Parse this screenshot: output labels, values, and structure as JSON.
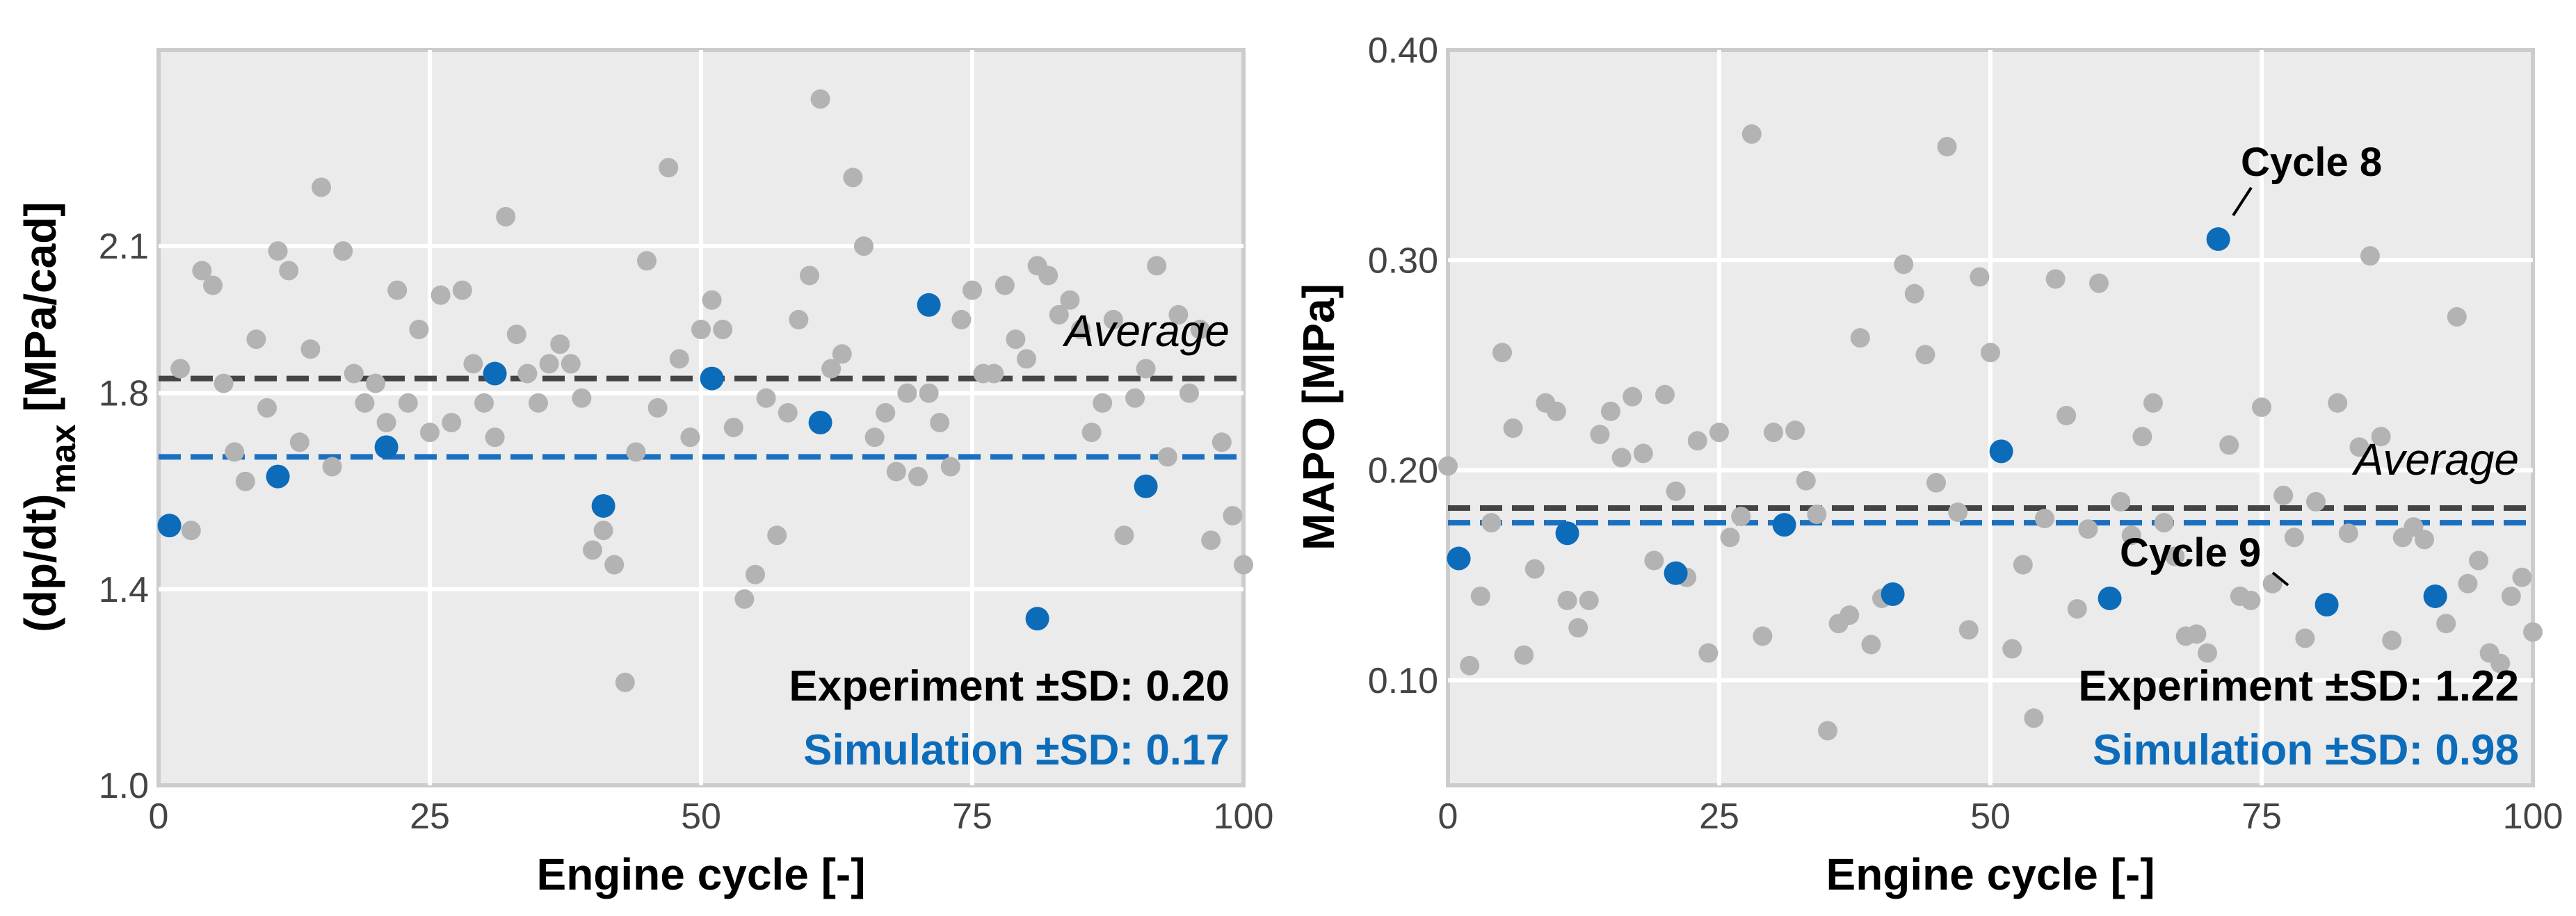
{
  "chart_data": [
    {
      "type": "scatter",
      "xlabel": "Engine cycle [-]",
      "ylabel": "(dp/dt)",
      "ylabel_sub": "max",
      "ylabel_unit": " [MPa/cad]",
      "xlim": [
        0,
        100
      ],
      "ylim": [
        1.0,
        2.5
      ],
      "xticks": [
        0,
        25,
        50,
        75,
        100
      ],
      "yticks": [
        1.0,
        1.4,
        1.8,
        2.1
      ],
      "ytick_labels": [
        "1.0",
        "1.4",
        "1.8",
        "2.1"
      ],
      "grid": true,
      "average_label": "Average",
      "experiment_label": "Experiment ±SD: 0.20",
      "simulation_label": "Simulation ±SD: 0.17",
      "experiment_average": 1.83,
      "simulation_average": 1.67,
      "colors": {
        "experiment": "#b3b3b3",
        "simulation": "#0c6cba",
        "experiment_line": "#444444",
        "simulation_line": "#1a6fc0"
      },
      "series": [
        {
          "name": "Experiment",
          "x": [
            2,
            3,
            4,
            5,
            6,
            7,
            8,
            9,
            10,
            11,
            12,
            13,
            14,
            15,
            16,
            17,
            18,
            19,
            20,
            21,
            22,
            23,
            24,
            25,
            26,
            27,
            28,
            29,
            30,
            31,
            32,
            33,
            34,
            35,
            36,
            37,
            38,
            39,
            40,
            41,
            42,
            43,
            44,
            45,
            46,
            47,
            48,
            49,
            50,
            51,
            52,
            53,
            54,
            55,
            56,
            57,
            58,
            59,
            60,
            61,
            62,
            63,
            64,
            65,
            66,
            67,
            68,
            69,
            70,
            71,
            72,
            73,
            74,
            75,
            76,
            77,
            78,
            79,
            80,
            81,
            82,
            83,
            84,
            85,
            86,
            87,
            88,
            89,
            90,
            91,
            92,
            93,
            94,
            95,
            96,
            97,
            98,
            99,
            100
          ],
          "y": [
            1.85,
            1.52,
            2.05,
            2.02,
            1.82,
            1.68,
            1.62,
            1.91,
            1.77,
            2.09,
            2.05,
            1.7,
            1.89,
            2.22,
            1.65,
            2.09,
            1.84,
            1.78,
            1.82,
            1.74,
            2.01,
            1.78,
            1.93,
            1.72,
            2.0,
            1.74,
            2.01,
            1.86,
            1.78,
            1.71,
            2.16,
            1.92,
            1.84,
            1.78,
            1.86,
            1.9,
            1.86,
            1.79,
            1.48,
            1.52,
            1.45,
            1.21,
            1.68,
            2.07,
            1.77,
            2.26,
            1.87,
            1.71,
            1.93,
            1.99,
            1.93,
            1.73,
            1.38,
            1.43,
            1.79,
            1.51,
            1.76,
            1.95,
            2.04,
            2.4,
            1.85,
            1.88,
            2.24,
            2.1,
            1.71,
            1.76,
            1.64,
            1.8,
            1.63,
            1.8,
            1.74,
            1.65,
            1.95,
            2.01,
            1.84,
            1.84,
            2.02,
            1.91,
            1.87,
            2.06,
            2.04,
            1.96,
            1.99,
            1.93,
            1.72,
            1.78,
            1.95,
            1.51,
            1.79,
            1.85,
            2.06,
            1.67,
            1.96,
            1.8,
            1.93,
            1.5,
            1.7,
            1.55,
            1.45
          ]
        },
        {
          "name": "Simulation",
          "x": [
            1,
            11,
            21,
            31,
            41,
            51,
            61,
            71,
            81,
            91
          ],
          "y": [
            1.53,
            1.63,
            1.69,
            1.84,
            1.57,
            1.83,
            1.74,
            1.98,
            1.34,
            1.61
          ]
        }
      ]
    },
    {
      "type": "scatter",
      "xlabel": "Engine cycle [-]",
      "ylabel": "MAPO [MPa]",
      "xlim": [
        0,
        100
      ],
      "ylim": [
        0.05,
        0.4
      ],
      "xticks": [
        0,
        25,
        50,
        75,
        100
      ],
      "yticks": [
        0.1,
        0.2,
        0.3,
        0.4
      ],
      "ytick_labels": [
        "0.10",
        "0.20",
        "0.30",
        "0.40"
      ],
      "grid": true,
      "average_label": "Average",
      "experiment_label": "Experiment ±SD: 1.22",
      "simulation_label": "Simulation ±SD: 0.98",
      "experiment_average": 0.182,
      "simulation_average": 0.175,
      "annotations": [
        {
          "text": "Cycle 8",
          "x": 71,
          "y": 0.31
        },
        {
          "text": "Cycle 9",
          "x": 81,
          "y": 0.136
        }
      ],
      "colors": {
        "experiment": "#b3b3b3",
        "simulation": "#0c6cba",
        "experiment_line": "#444444",
        "simulation_line": "#1a6fc0"
      },
      "series": [
        {
          "name": "Experiment",
          "x": [
            0,
            2,
            3,
            4,
            5,
            6,
            7,
            8,
            9,
            10,
            11,
            12,
            13,
            14,
            15,
            16,
            17,
            18,
            19,
            20,
            21,
            22,
            23,
            24,
            25,
            26,
            27,
            28,
            29,
            30,
            32,
            33,
            34,
            35,
            36,
            37,
            38,
            39,
            40,
            42,
            43,
            44,
            45,
            46,
            47,
            48,
            49,
            50,
            52,
            53,
            54,
            55,
            56,
            57,
            58,
            59,
            60,
            62,
            63,
            64,
            65,
            66,
            67,
            68,
            69,
            70,
            72,
            73,
            74,
            75,
            76,
            77,
            78,
            79,
            80,
            82,
            83,
            84,
            85,
            86,
            87,
            88,
            89,
            90,
            92,
            93,
            94,
            95,
            96,
            97,
            98,
            99,
            100
          ],
          "y": [
            0.202,
            0.107,
            0.14,
            0.175,
            0.256,
            0.22,
            0.112,
            0.153,
            0.232,
            0.228,
            0.138,
            0.125,
            0.138,
            0.217,
            0.228,
            0.206,
            0.235,
            0.208,
            0.157,
            0.236,
            0.19,
            0.149,
            0.214,
            0.113,
            0.218,
            0.168,
            0.178,
            0.36,
            0.121,
            0.218,
            0.219,
            0.195,
            0.179,
            0.076,
            0.127,
            0.131,
            0.263,
            0.117,
            0.139,
            0.298,
            0.284,
            0.255,
            0.194,
            0.354,
            0.18,
            0.124,
            0.292,
            0.256,
            0.115,
            0.155,
            0.082,
            0.177,
            0.291,
            0.226,
            0.134,
            0.172,
            0.289,
            0.185,
            0.169,
            0.216,
            0.232,
            0.175,
            0.159,
            0.121,
            0.122,
            0.113,
            0.212,
            0.14,
            0.138,
            0.23,
            0.146,
            0.188,
            0.168,
            0.12,
            0.185,
            0.232,
            0.17,
            0.211,
            0.302,
            0.216,
            0.119,
            0.168,
            0.173,
            0.167,
            0.127,
            0.273,
            0.146,
            0.157,
            0.113,
            0.108,
            0.14,
            0.149,
            0.123
          ]
        },
        {
          "name": "Simulation",
          "x": [
            1,
            11,
            21,
            31,
            41,
            51,
            61,
            71,
            81,
            91
          ],
          "y": [
            0.158,
            0.17,
            0.151,
            0.174,
            0.141,
            0.209,
            0.139,
            0.31,
            0.136,
            0.14
          ]
        }
      ]
    }
  ]
}
